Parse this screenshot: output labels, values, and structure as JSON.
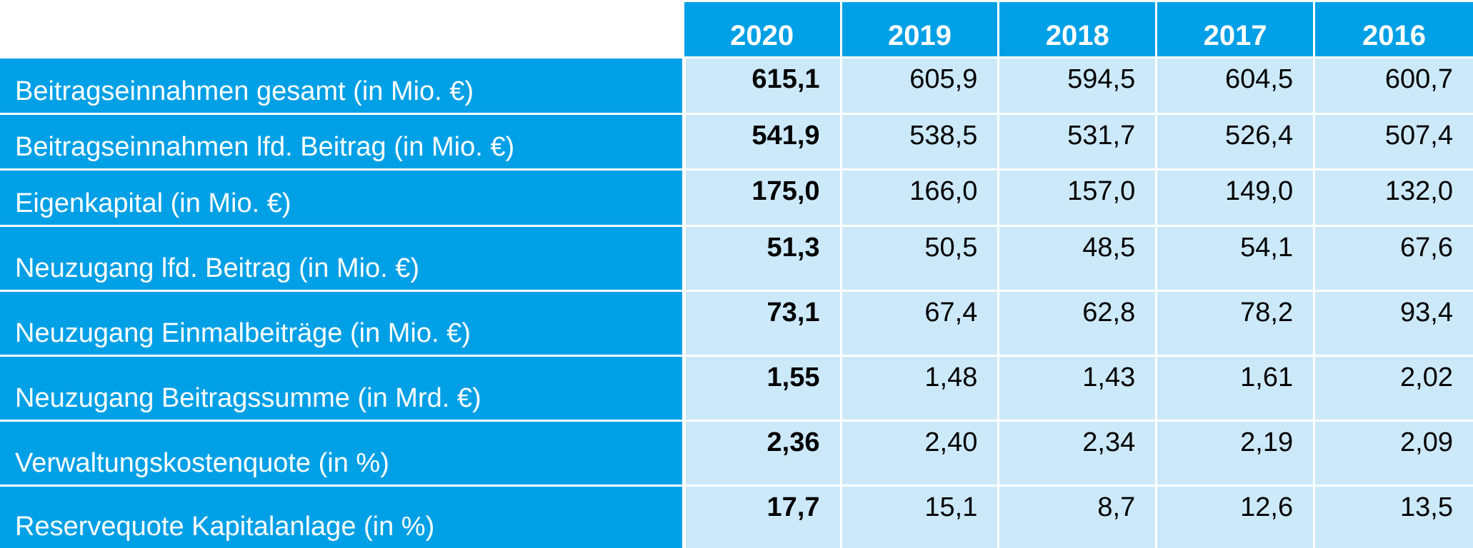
{
  "chart_data": {
    "type": "table",
    "columns": [
      "2020",
      "2019",
      "2018",
      "2017",
      "2016"
    ],
    "rows": [
      {
        "label": "Beitragseinnahmen gesamt (in Mio. €)",
        "values": [
          "615,1",
          "605,9",
          "594,5",
          "604,5",
          "600,7"
        ]
      },
      {
        "label": "Beitragseinnahmen lfd. Beitrag (in Mio. €)",
        "values": [
          "541,9",
          "538,5",
          "531,7",
          "526,4",
          "507,4"
        ]
      },
      {
        "label": "Eigenkapital (in Mio. €)",
        "values": [
          "175,0",
          "166,0",
          "157,0",
          "149,0",
          "132,0"
        ]
      },
      {
        "label": "Neuzugang lfd. Beitrag (in Mio. €)",
        "values": [
          "51,3",
          "50,5",
          "48,5",
          "54,1",
          "67,6"
        ]
      },
      {
        "label": "Neuzugang Einmalbeiträge (in Mio. €)",
        "values": [
          "73,1",
          "67,4",
          "62,8",
          "78,2",
          "93,4"
        ]
      },
      {
        "label": "Neuzugang Beitragssumme (in Mrd. €)",
        "values": [
          "1,55",
          "1,48",
          "1,43",
          "1,61",
          "2,02"
        ]
      },
      {
        "label": "Verwaltungskostenquote (in %)",
        "values": [
          "2,36",
          "2,40",
          "2,34",
          "2,19",
          "2,09"
        ]
      },
      {
        "label": "Reservequote Kapitalanlage (in %)",
        "values": [
          "17,7",
          "15,1",
          "8,7",
          "12,6",
          "13,5"
        ]
      }
    ],
    "highlight_column": "2020",
    "colors": {
      "header_bg": "#00a0e6",
      "header_text": "#ffffff",
      "cell_bg": "#cce9fa",
      "cell_text": "#000000"
    }
  }
}
